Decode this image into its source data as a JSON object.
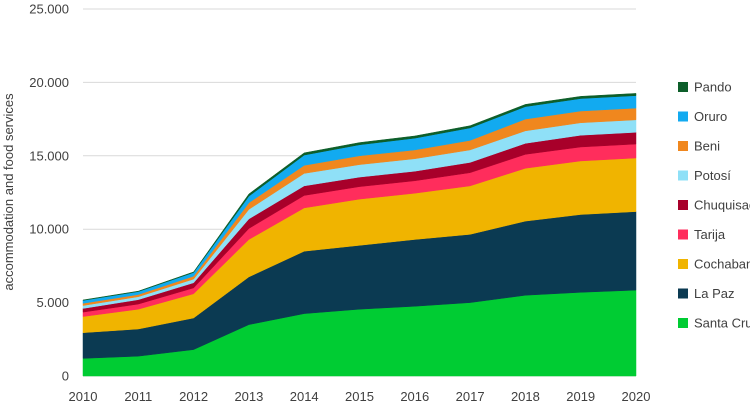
{
  "chart_data": {
    "type": "area",
    "stacked": true,
    "title": "",
    "xlabel": "",
    "ylabel": "accommodation and food services",
    "ylim": [
      0,
      25000
    ],
    "yticks": [
      0,
      5000,
      10000,
      15000,
      20000,
      25000
    ],
    "ytick_labels": [
      "0",
      "5.000",
      "10.000",
      "15.000",
      "20.000",
      "25.000"
    ],
    "grid": "horizontal",
    "legend_position": "right",
    "x": [
      "2010",
      "2011",
      "2012",
      "2013",
      "2014",
      "2015",
      "2016",
      "2017",
      "2018",
      "2019",
      "2020"
    ],
    "series": [
      {
        "name": "Santa Cruz",
        "color": "#00cc33",
        "values": [
          1200,
          1350,
          1800,
          3500,
          4250,
          4550,
          4750,
          5000,
          5500,
          5700,
          5850
        ]
      },
      {
        "name": "La Paz",
        "color": "#0b3a52",
        "values": [
          1750,
          1850,
          2150,
          3250,
          4250,
          4350,
          4550,
          4650,
          5050,
          5300,
          5350
        ]
      },
      {
        "name": "Cochabamba",
        "color": "#f0b400",
        "values": [
          1100,
          1350,
          1650,
          2550,
          2950,
          3150,
          3150,
          3300,
          3600,
          3650,
          3650
        ]
      },
      {
        "name": "Tarija",
        "color": "#ff2d5c",
        "values": [
          300,
          350,
          400,
          750,
          850,
          850,
          850,
          900,
          950,
          950,
          950
        ]
      },
      {
        "name": "Chuquisaca",
        "color": "#a8002a",
        "values": [
          250,
          300,
          350,
          650,
          650,
          650,
          650,
          700,
          750,
          800,
          800
        ]
      },
      {
        "name": "Potosí",
        "color": "#8fe0f7",
        "values": [
          200,
          200,
          250,
          650,
          850,
          850,
          850,
          850,
          850,
          850,
          850
        ]
      },
      {
        "name": "Beni",
        "color": "#f0871e",
        "values": [
          150,
          150,
          200,
          450,
          550,
          600,
          600,
          650,
          800,
          800,
          800
        ]
      },
      {
        "name": "Oruro",
        "color": "#12aaf0",
        "values": [
          200,
          200,
          250,
          450,
          700,
          750,
          800,
          850,
          850,
          850,
          850
        ]
      },
      {
        "name": "Pando",
        "color": "#0d5e2a",
        "values": [
          30,
          30,
          40,
          150,
          150,
          150,
          150,
          150,
          150,
          150,
          150
        ]
      }
    ]
  }
}
